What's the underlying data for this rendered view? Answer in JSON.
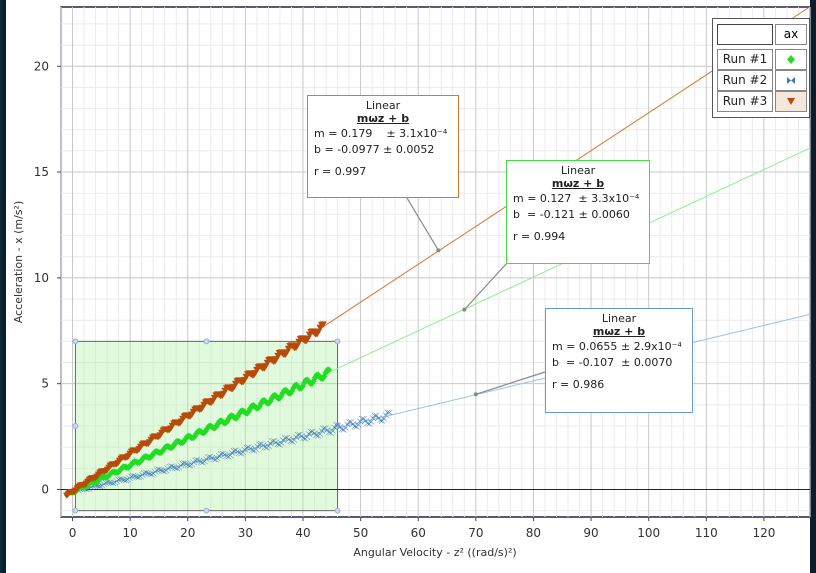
{
  "chart_data": {
    "type": "scatter",
    "xlabel": "Angular Velocity - z² ((rad/s)²)",
    "ylabel": "Acceleration - x (m/s²)",
    "xlim": [
      -2,
      128
    ],
    "ylim": [
      -1.3,
      22.8
    ],
    "x_ticks": [
      0,
      10,
      20,
      30,
      40,
      50,
      60,
      70,
      80,
      90,
      100,
      110,
      120
    ],
    "y_ticks": [
      0,
      5,
      10,
      15,
      20
    ],
    "grid": true,
    "legend": {
      "placement": "top-right",
      "header_right": "ax",
      "entries": [
        "Run #1",
        "Run #2",
        "Run #3"
      ]
    },
    "selection_region": {
      "x": [
        0.5,
        46
      ],
      "y": [
        -1.0,
        7.0
      ]
    },
    "series": [
      {
        "name": "Run #1",
        "color": "#22dd22",
        "marker": "diamond",
        "x_range": [
          -1,
          44.5
        ],
        "slope": 0.127,
        "intercept": -0.121
      },
      {
        "name": "Run #2",
        "color": "#3a7ab8",
        "marker": "bowtie",
        "x_range": [
          1,
          55
        ],
        "slope": 0.0655,
        "intercept": -0.107
      },
      {
        "name": "Run #3",
        "color": "#b84a0a",
        "marker": "triangle-down",
        "x_range": [
          -1,
          43.5
        ],
        "slope": 0.179,
        "intercept": -0.0977
      }
    ],
    "fits": [
      {
        "series": "Run #3",
        "type": "Linear",
        "equation": "mωz + b",
        "m": "m = 0.179    ± 3.1x10⁻⁴",
        "b": "b = -0.0977 ± 0.0052",
        "r": "r = 0.997",
        "border": "#d9772a",
        "anchor": [
          63.5,
          11.3
        ]
      },
      {
        "series": "Run #1",
        "type": "Linear",
        "equation": "mωz + b",
        "m": "m = 0.127  ± 3.3x10⁻⁴",
        "b": "b  = -0.121 ± 0.0060",
        "r": "r = 0.994",
        "border": "#44dd44",
        "anchor": [
          68,
          8.5
        ]
      },
      {
        "series": "Run #2",
        "type": "Linear",
        "equation": "mωz + b",
        "m": "m = 0.0655 ± 2.9x10⁻⁴",
        "b": "b  = -0.107  ± 0.0070",
        "r": "r = 0.986",
        "border": "#6a9cc8",
        "anchor": [
          70,
          4.5
        ]
      }
    ]
  }
}
